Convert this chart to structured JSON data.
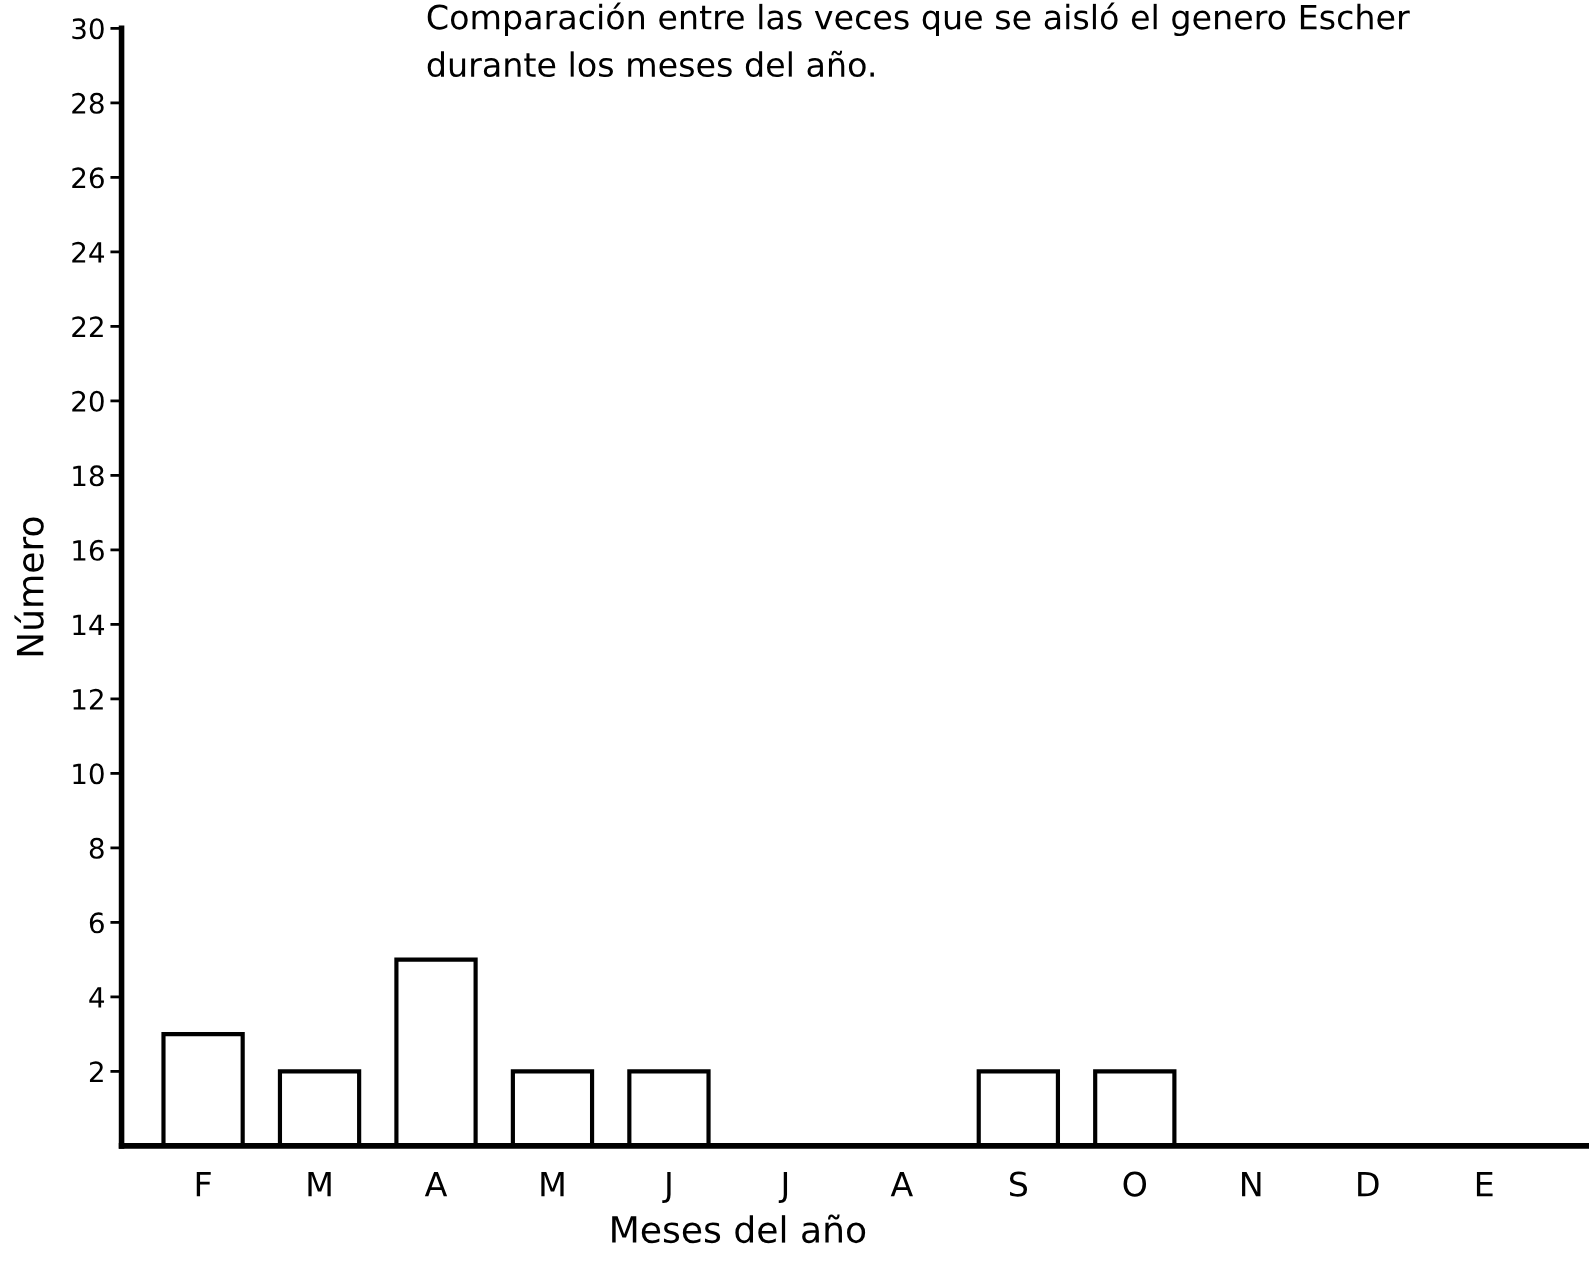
{
  "chart_data": {
    "type": "bar",
    "title": "Comparación entre las veces que se aisló el genero Escher\ndurante los meses del año.",
    "xlabel": "Meses del año",
    "ylabel": "Número",
    "categories": [
      "F",
      "M",
      "A",
      "M",
      "J",
      "J",
      "A",
      "S",
      "O",
      "N",
      "D",
      "E"
    ],
    "values": [
      3,
      2,
      5,
      2,
      2,
      0,
      0,
      2,
      2,
      0,
      0,
      0
    ],
    "color": "#ffffff",
    "ylim": [
      0,
      30
    ],
    "yticks": [
      2,
      4,
      6,
      8,
      10,
      12,
      14,
      16,
      18,
      20,
      22,
      24,
      26,
      28,
      30
    ],
    "grid": false
  }
}
